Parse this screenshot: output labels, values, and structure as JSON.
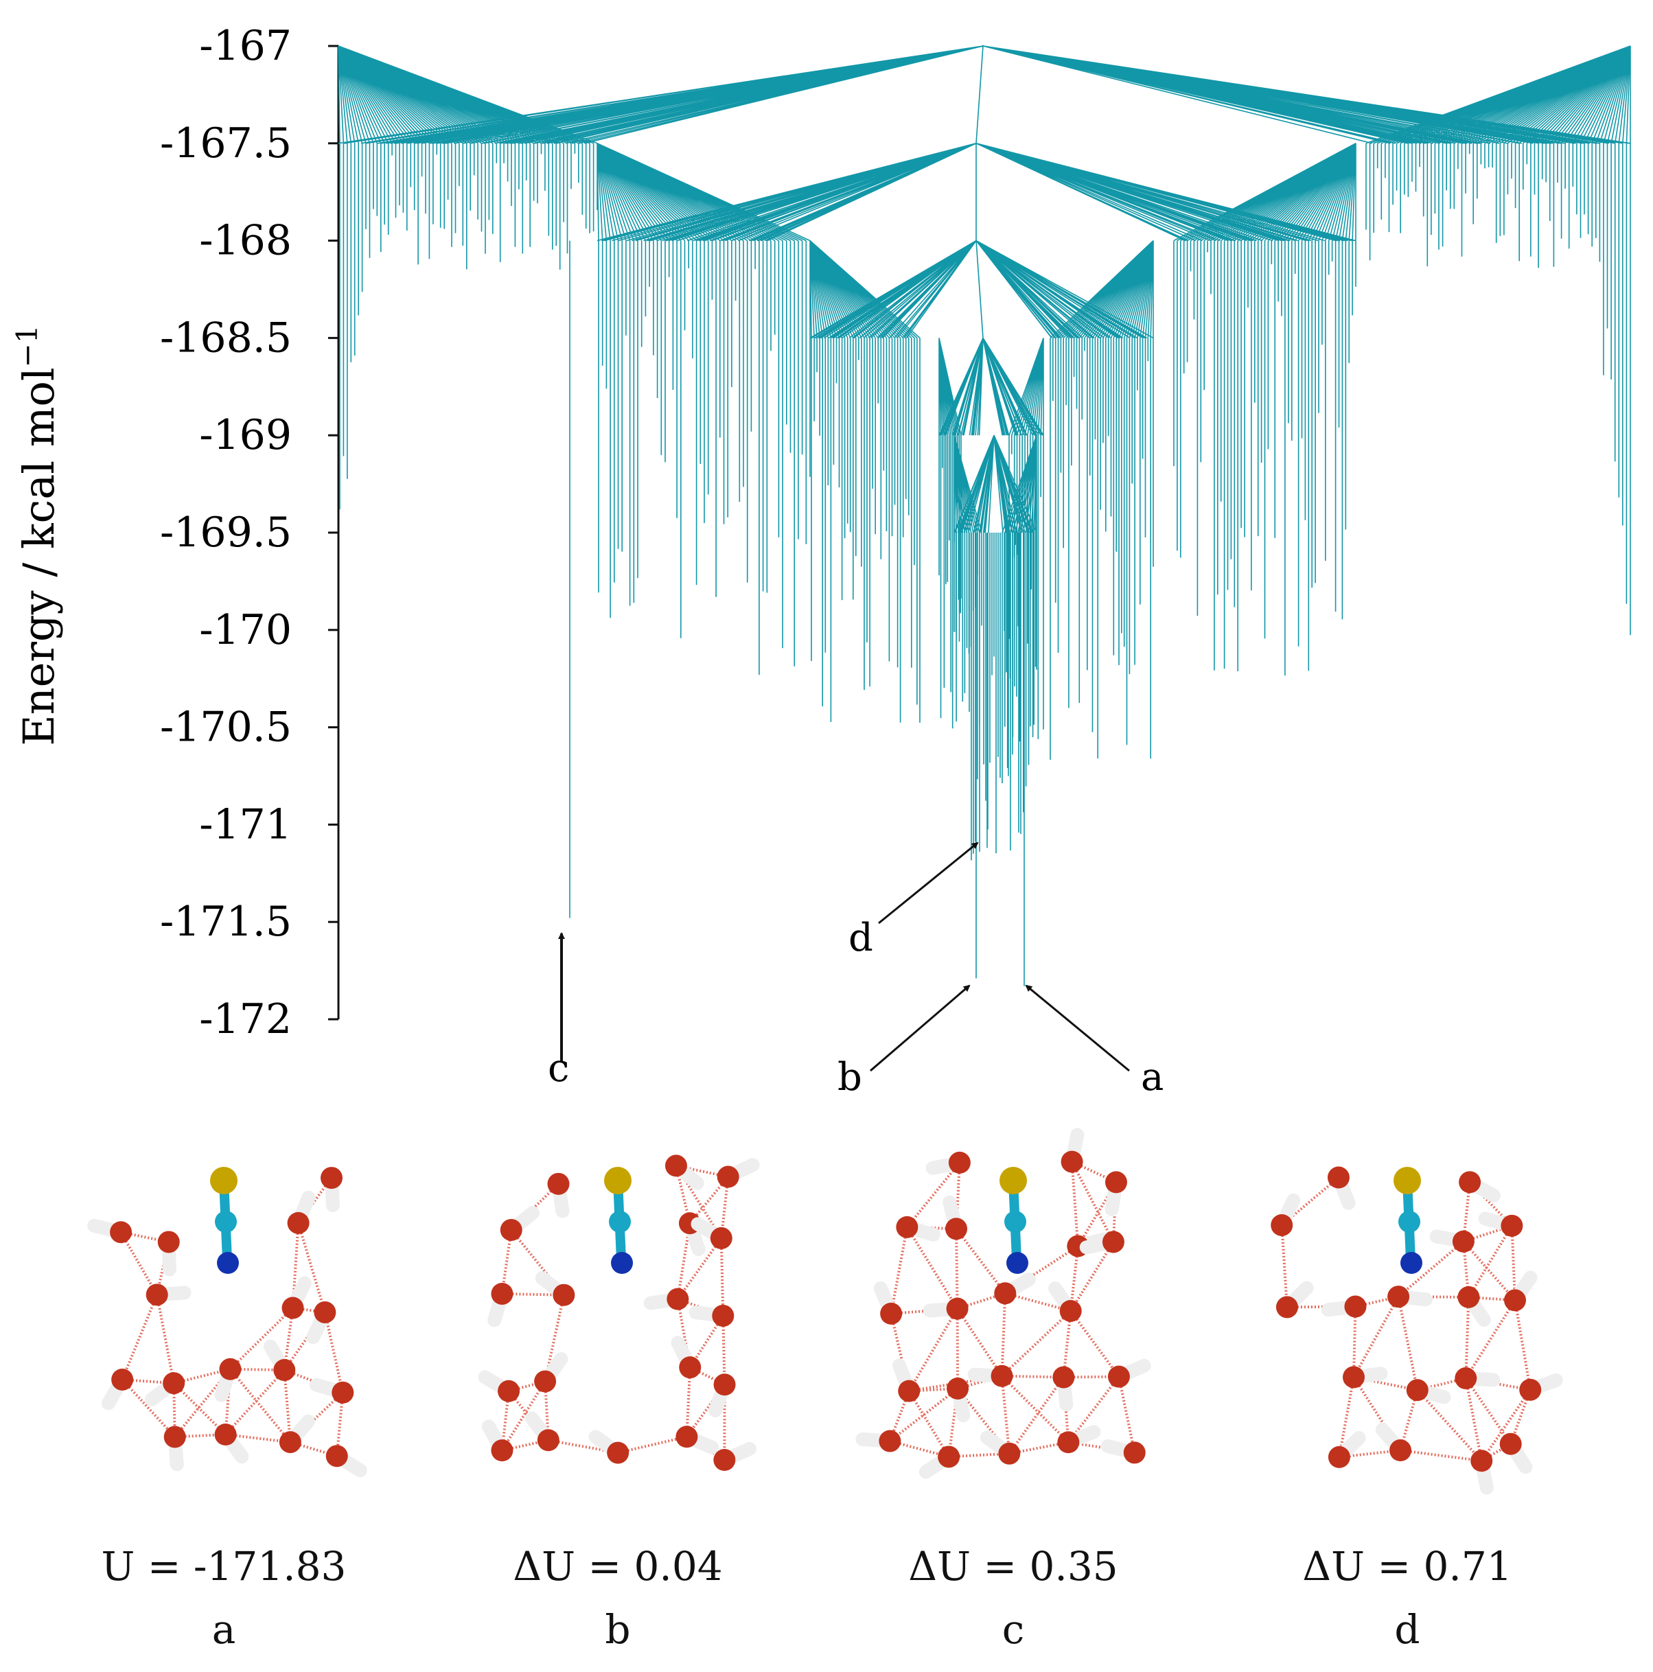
{
  "chart_data": {
    "type": "disconnectivity graph",
    "ylabel": "Energy / kcal mol",
    "ylabel_superscript": "−1",
    "ylim": [
      -172,
      -167
    ],
    "yticks": [
      -167,
      -167.5,
      -168,
      -168.5,
      -169,
      -169.5,
      -170,
      -170.5,
      -171,
      -171.5,
      -172
    ],
    "ytick_labels": [
      "-167",
      "-167.5",
      "-168",
      "-168.5",
      "-169",
      "-169.5",
      "-170",
      "-170.5",
      "-171",
      "-171.5",
      "-172"
    ],
    "tree_color": "#1297a8",
    "marked_minima": [
      {
        "label": "a",
        "energy": -171.83
      },
      {
        "label": "b",
        "energy": -171.79
      },
      {
        "label": "c",
        "energy": -171.48
      },
      {
        "label": "d",
        "energy": -171.12
      }
    ]
  },
  "structures": [
    {
      "id": "a",
      "caption": "U = -171.83",
      "letter": "a"
    },
    {
      "id": "b",
      "caption": "ΔU = 0.04",
      "letter": "b"
    },
    {
      "id": "c",
      "caption": "ΔU = 0.35",
      "letter": "c"
    },
    {
      "id": "d",
      "caption": "ΔU = 0.71",
      "letter": "d"
    }
  ],
  "colors": {
    "oxygen": "#c0321c",
    "hydrogen": "#eeeeee",
    "sulfur": "#c6a400",
    "carbon": "#18a6c4",
    "nitrogen": "#1233b0",
    "hbond": "#e26a5a"
  }
}
